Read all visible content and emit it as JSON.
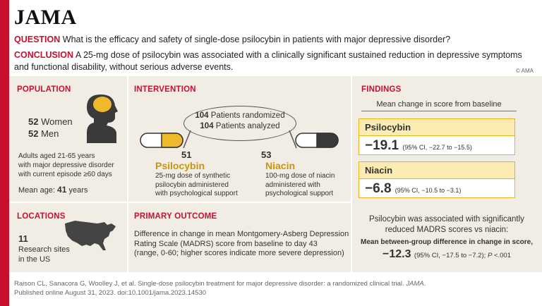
{
  "header": {
    "logo": "JAMA",
    "question_label": "QUESTION",
    "question_text": "What is the efficacy and safety of single-dose psilocybin in patients with major depressive disorder?",
    "conclusion_label": "CONCLUSION",
    "conclusion_text": "A 25-mg dose of psilocybin was associated with a clinically significant sustained reduction in depressive symptoms and functional disability, without serious adverse events.",
    "copyright": "© AMA"
  },
  "population": {
    "title": "POPULATION",
    "women_count": "52",
    "women_label": "Women",
    "men_count": "52",
    "men_label": "Men",
    "criteria_line1": "Adults aged 21-65 years",
    "criteria_line2": "with major depressive disorder",
    "criteria_line3": "with current episode ≥60 days",
    "mean_age_label": "Mean age:",
    "mean_age_value": "41",
    "mean_age_unit": "years"
  },
  "locations": {
    "title": "LOCATIONS",
    "count": "11",
    "line1": "Research sites",
    "line2": "in the US"
  },
  "intervention": {
    "title": "INTERVENTION",
    "randomized_count": "104",
    "randomized_label": "Patients randomized",
    "analyzed_count": "104",
    "analyzed_label": "Patients analyzed",
    "arm1_count": "51",
    "arm1_name": "Psilocybin",
    "arm1_line1": "25-mg dose of synthetic",
    "arm1_line2": "psilocybin administered",
    "arm1_line3": "with psychological support",
    "arm2_count": "53",
    "arm2_name": "Niacin",
    "arm2_line1": "100-mg dose of niacin",
    "arm2_line2": "administered with",
    "arm2_line3": "psychological support"
  },
  "primary_outcome": {
    "title": "PRIMARY OUTCOME",
    "line1": "Difference in change in mean Montgomery-Asberg Depression",
    "line2": "Rating Scale (MADRS) score from baseline to day 43",
    "line3": "(range, 0-60; higher scores indicate more severe depression)"
  },
  "findings": {
    "title": "FINDINGS",
    "subtitle": "Mean change in score from baseline",
    "psilocybin_label": "Psilocybin",
    "psilocybin_value": "−19.1",
    "psilocybin_ci": "(95% CI, −22.7 to −15.5)",
    "niacin_label": "Niacin",
    "niacin_value": "−6.8",
    "niacin_ci": "(95% CI, −10.5 to −3.1)",
    "summary_line1": "Psilocybin was associated with significantly",
    "summary_line2": "reduced MADRS scores vs niacin:",
    "diff_label_line": "Mean between-group difference in change in score,",
    "diff_value": "−12.3",
    "diff_ci": "(95% CI, −17.5 to −7.2); ",
    "p_label": "P",
    "p_value": " <.001"
  },
  "footer": {
    "line1_plain": "Raison CL, Sanacora G, Woolley J, et al. Single-dose psilocybin treatment for major depressive disorder: a randomized clinical trial. ",
    "line1_journal": "JAMA",
    "line1_end": ".",
    "line2": "Published online August 31, 2023. doi:10.1001/jama.2023.14530"
  },
  "colors": {
    "accent_red": "#c8102e",
    "psilocybin_yellow": "#e8b21b",
    "panel_background": "#f1ede4"
  }
}
